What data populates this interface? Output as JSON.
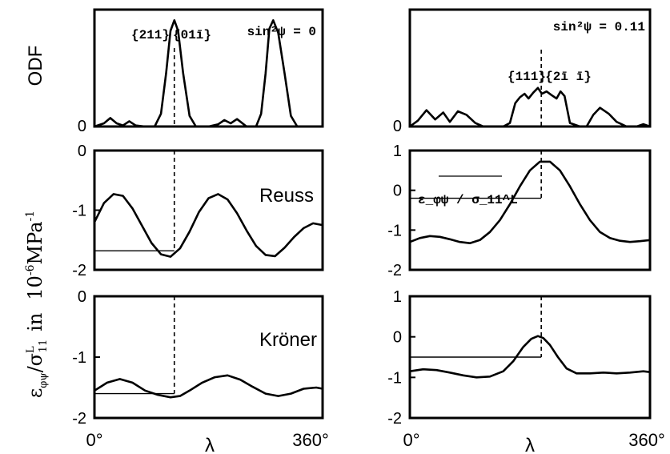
{
  "figure": {
    "y_label_odf": "ODF",
    "y_label_strain": "ε_φψ/σ_11^L in 10⁻⁶MPa⁻¹",
    "y_label_strain_parts": {
      "eps": "ε",
      "eps_sub": "φψ",
      "sigma": "/σ",
      "sigma_sup": "L",
      "sigma_sub": "11",
      "in": "in",
      "unit_pre": "10",
      "unit_exp": "-6",
      "unit_mid": "MPa",
      "unit_exp2": "-1"
    },
    "x_label": "λ",
    "x_tick_start": "0°",
    "x_tick_end": "360°"
  },
  "chart_data": [
    {
      "type": "line",
      "panel": "left-odf",
      "ylabel": "ODF",
      "annotation": "sin²ψ = 0",
      "peak_labels": [
        "{211}",
        "{01ī}"
      ],
      "xlim": [
        0,
        360
      ],
      "y_ticks": [
        "0"
      ],
      "x": [
        0,
        15,
        25,
        35,
        45,
        55,
        65,
        80,
        95,
        105,
        113,
        120,
        126,
        132,
        140,
        150,
        160,
        180,
        195,
        205,
        215,
        225,
        240,
        255,
        263,
        270,
        276,
        282,
        290,
        300,
        310,
        320,
        340,
        360
      ],
      "values": [
        0,
        3,
        8,
        3,
        1,
        5,
        1,
        0,
        0,
        12,
        50,
        90,
        100,
        90,
        50,
        10,
        0,
        0,
        2,
        6,
        3,
        7,
        0,
        0,
        12,
        50,
        92,
        100,
        88,
        50,
        10,
        0,
        0,
        0
      ]
    },
    {
      "type": "line",
      "panel": "left-reuss",
      "title": "Reuss",
      "xlim": [
        0,
        360
      ],
      "ylim": [
        -2,
        0
      ],
      "y_ticks": [
        "0",
        "-1",
        "-2"
      ],
      "x": [
        0,
        15,
        30,
        45,
        60,
        75,
        90,
        105,
        120,
        135,
        150,
        165,
        180,
        195,
        210,
        225,
        240,
        255,
        270,
        285,
        300,
        315,
        330,
        345,
        360
      ],
      "values": [
        -1.2,
        -0.88,
        -0.73,
        -0.76,
        -0.97,
        -1.26,
        -1.55,
        -1.74,
        -1.78,
        -1.64,
        -1.36,
        -1.03,
        -0.8,
        -0.73,
        -0.82,
        -1.05,
        -1.34,
        -1.6,
        -1.75,
        -1.77,
        -1.63,
        -1.45,
        -1.3,
        -1.22,
        -1.25
      ],
      "marker_x": 126,
      "marker_y": -1.68
    },
    {
      "type": "line",
      "panel": "left-kroner",
      "title": "Kröner",
      "xlim": [
        0,
        360
      ],
      "ylim": [
        -2,
        0
      ],
      "y_ticks": [
        "0",
        "-1",
        "-2"
      ],
      "x": [
        0,
        20,
        40,
        60,
        80,
        100,
        120,
        135,
        150,
        170,
        190,
        210,
        230,
        250,
        270,
        290,
        310,
        330,
        350,
        360
      ],
      "values": [
        -1.55,
        -1.42,
        -1.36,
        -1.42,
        -1.55,
        -1.62,
        -1.66,
        -1.64,
        -1.55,
        -1.42,
        -1.33,
        -1.3,
        -1.37,
        -1.49,
        -1.6,
        -1.64,
        -1.6,
        -1.52,
        -1.5,
        -1.52
      ],
      "marker_x": 126,
      "marker_y": -1.6
    },
    {
      "type": "line",
      "panel": "right-odf",
      "annotation": "sin²ψ = 0.11",
      "peak_labels": [
        "{111}",
        "{2ī ī}"
      ],
      "xlim": [
        0,
        360
      ],
      "y_ticks": [
        "0"
      ],
      "x": [
        0,
        12,
        25,
        38,
        50,
        60,
        72,
        85,
        98,
        110,
        125,
        140,
        150,
        158,
        165,
        172,
        178,
        185,
        192,
        198,
        205,
        212,
        220,
        226,
        232,
        240,
        255,
        265,
        275,
        285,
        298,
        310,
        325,
        340,
        350,
        360
      ],
      "values": [
        0,
        5,
        14,
        6,
        12,
        4,
        13,
        10,
        3,
        0,
        0,
        0,
        3,
        20,
        25,
        28,
        24,
        29,
        33,
        28,
        30,
        27,
        24,
        30,
        26,
        3,
        0,
        0,
        10,
        16,
        11,
        4,
        0,
        0,
        2,
        0
      ],
      "marker_x": 197
    },
    {
      "type": "line",
      "panel": "right-reuss",
      "annotation": "ε_φψ / σ_11^L",
      "xlim": [
        0,
        360
      ],
      "ylim": [
        -2,
        1
      ],
      "y_ticks": [
        "1",
        "0",
        "-1",
        "-2"
      ],
      "x": [
        0,
        15,
        30,
        45,
        60,
        75,
        90,
        105,
        120,
        135,
        150,
        165,
        180,
        195,
        210,
        225,
        240,
        255,
        270,
        285,
        300,
        315,
        330,
        345,
        360
      ],
      "values": [
        -1.3,
        -1.2,
        -1.15,
        -1.17,
        -1.23,
        -1.3,
        -1.33,
        -1.25,
        -1.05,
        -0.75,
        -0.35,
        0.1,
        0.5,
        0.72,
        0.72,
        0.5,
        0.1,
        -0.35,
        -0.75,
        -1.05,
        -1.2,
        -1.27,
        -1.3,
        -1.28,
        -1.25
      ],
      "marker_x": 197,
      "marker_y": -0.2
    },
    {
      "type": "line",
      "panel": "right-kroner",
      "xlim": [
        0,
        360
      ],
      "ylim": [
        -2,
        1
      ],
      "y_ticks": [
        "1",
        "0",
        "-1",
        "-2"
      ],
      "x": [
        0,
        20,
        40,
        60,
        80,
        100,
        120,
        140,
        155,
        170,
        182,
        192,
        200,
        210,
        222,
        235,
        250,
        270,
        290,
        310,
        330,
        350,
        360
      ],
      "values": [
        -0.85,
        -0.8,
        -0.82,
        -0.88,
        -0.95,
        -1.0,
        -0.98,
        -0.85,
        -0.6,
        -0.25,
        -0.05,
        0.02,
        -0.03,
        -0.2,
        -0.5,
        -0.78,
        -0.9,
        -0.9,
        -0.88,
        -0.9,
        -0.88,
        -0.85,
        -0.87
      ],
      "marker_x": 197,
      "marker_y": -0.5
    }
  ]
}
